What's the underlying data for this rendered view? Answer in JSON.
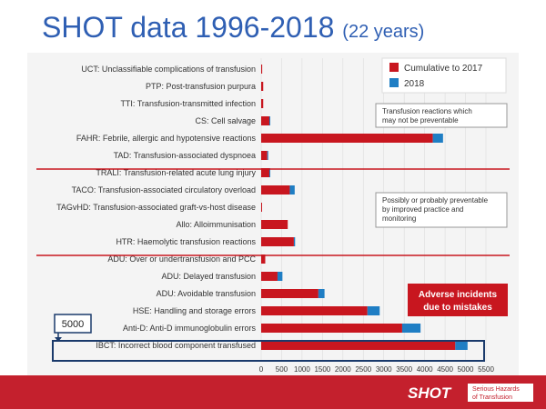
{
  "slide": {
    "title_main": "SHOT data 1996-2018",
    "title_sub": "(22 years)"
  },
  "notes": {
    "not_preventable": [
      "Transfusion reactions which",
      "may not be preventable"
    ],
    "preventable": [
      "Possibly or probably preventable",
      "by improved practice and",
      "monitoring"
    ],
    "adverse": [
      "Adverse incidents",
      "due to mistakes"
    ]
  },
  "callout": {
    "value": "5000"
  },
  "footer": {
    "logo": "SHOT",
    "logo_sub_1": "Serious Hazards",
    "logo_sub_2": "of Transfusion"
  },
  "colors": {
    "cumulative": "#c8161f",
    "current": "#1f7ec4",
    "title": "#2f5fb3",
    "divider": "#c8161f"
  },
  "chart_data": {
    "type": "bar",
    "orientation": "horizontal",
    "stacked": true,
    "title": "SHOT data 1996-2018 (22 years)",
    "categories": [
      "UCT: Unclassifiable complications of transfusion",
      "PTP: Post-transfusion purpura",
      "TTI: Transfusion-transmitted infection",
      "CS: Cell salvage",
      "FAHR: Febrile, allergic and hypotensive reactions",
      "TAD: Transfusion-associated dyspnoea",
      "TRALI: Transfusion-related acute lung injury",
      "TACO: Transfusion-associated circulatory overload",
      "TAGvHD: Transfusion-associated graft-vs-host disease",
      "Allo: Alloimmunisation",
      "HTR: Haemolytic transfusion reactions",
      "ADU: Over or undertransfusion and PCC",
      "ADU: Delayed transfusion",
      "ADU: Avoidable transfusion",
      "HSE: Handling and storage errors",
      "Anti-D: Anti-D immunoglobulin errors",
      "IBCT: Incorrect blood component transfused"
    ],
    "series": [
      {
        "name": "Cumulative to 2017",
        "values": [
          25,
          50,
          50,
          200,
          4200,
          150,
          200,
          700,
          10,
          650,
          800,
          100,
          400,
          1400,
          2600,
          3450,
          4750
        ]
      },
      {
        "name": "2018",
        "values": [
          0,
          0,
          0,
          15,
          250,
          15,
          10,
          120,
          0,
          0,
          30,
          0,
          120,
          150,
          300,
          450,
          300
        ]
      }
    ],
    "xlim": [
      0,
      5500
    ],
    "xticks": [
      "0",
      "500",
      "1000",
      "1500",
      "2000",
      "2500",
      "3000",
      "3500",
      "4000",
      "4500",
      "5000",
      "5500"
    ],
    "highlight": "IBCT: Incorrect blood component transfused"
  }
}
